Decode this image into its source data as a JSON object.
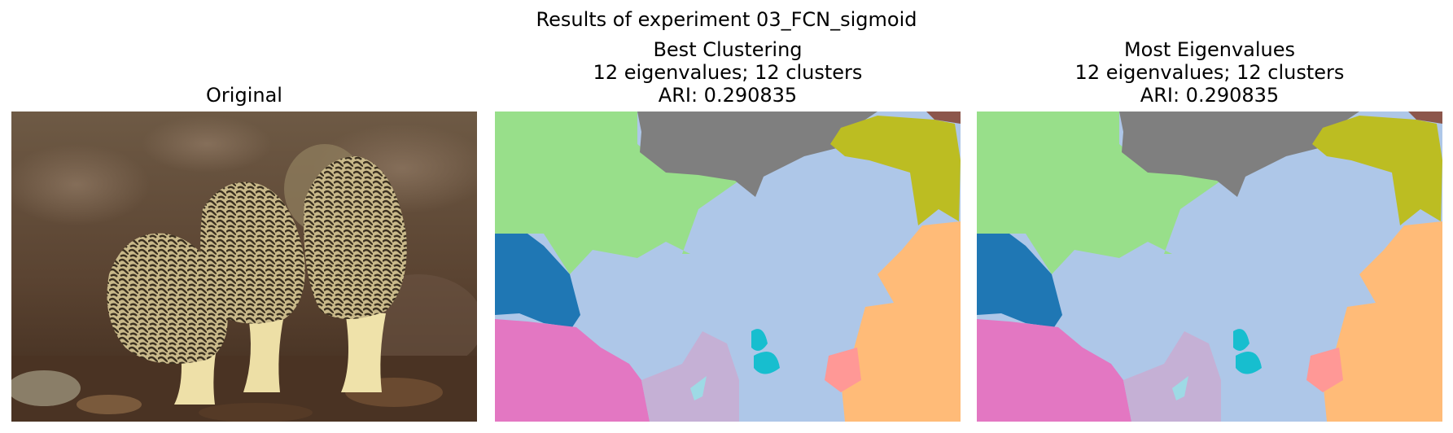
{
  "figure": {
    "suptitle": "Results of experiment 03_FCN_sigmoid",
    "panels": [
      {
        "title_lines": [
          "Original"
        ]
      },
      {
        "title_lines": [
          "Best Clustering",
          "12 eigenvalues; 12 clusters",
          "ARI: 0.290835"
        ]
      },
      {
        "title_lines": [
          "Most Eigenvalues",
          "12 eigenvalues; 12 clusters",
          "ARI: 0.290835"
        ]
      }
    ]
  },
  "palette": {
    "blue": "#1f77b4",
    "light_blue": "#aec7e8",
    "orange_light": "#ffbb78",
    "green_light": "#98df8a",
    "red_light": "#ff9896",
    "brown": "#8c564b",
    "purple_light": "#c5b0d5",
    "pink": "#e377c2",
    "gray": "#7f7f7f",
    "olive": "#bcbd22",
    "cyan": "#17becf",
    "cyan_light": "#9edae5"
  }
}
